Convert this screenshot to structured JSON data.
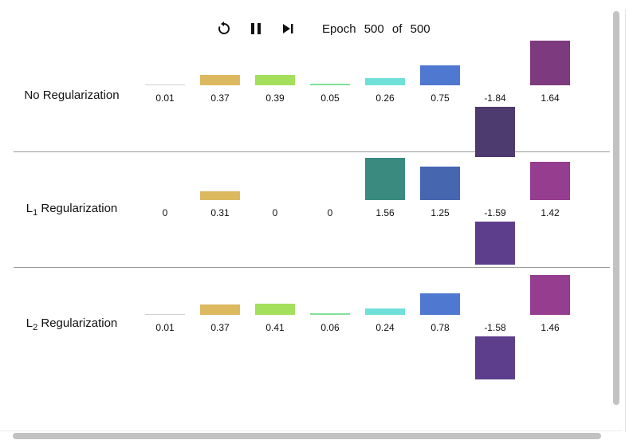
{
  "controls": {
    "restart_icon": "restart-icon",
    "pause_icon": "pause-icon",
    "step_icon": "step-forward-icon",
    "epoch_label": "Epoch",
    "epoch_current": "500",
    "epoch_of": "of",
    "epoch_total": "500"
  },
  "rows": [
    {
      "label_main": "No Regularization",
      "label_sub": "",
      "label_suffix": "",
      "values": [
        "0.01",
        "0.37",
        "0.39",
        "0.05",
        "0.26",
        "0.75",
        "-1.84",
        "1.64"
      ]
    },
    {
      "label_main": "L",
      "label_sub": "1",
      "label_suffix": " Regularization",
      "values": [
        "0",
        "0.31",
        "0",
        "0",
        "1.56",
        "1.25",
        "-1.59",
        "1.42"
      ]
    },
    {
      "label_main": "L",
      "label_sub": "2",
      "label_suffix": " Regularization",
      "values": [
        "0.01",
        "0.37",
        "0.41",
        "0.06",
        "0.24",
        "0.78",
        "-1.58",
        "1.46"
      ]
    }
  ],
  "colors": {
    "row0": [
      "#d0d0d0",
      "#dcb95f",
      "#a4e05c",
      "#82e09a",
      "#6fe0d8",
      "#4f78d0",
      "#4d3a6e",
      "#7e3a7e"
    ],
    "row1": [
      "#d0d0d0",
      "#dcb95f",
      "#a4e05c",
      "#82e09a",
      "#3a8a80",
      "#4666b0",
      "#5c3e8c",
      "#953d8f"
    ],
    "row2": [
      "#d0d0d0",
      "#dcb95f",
      "#a4e05c",
      "#82e09a",
      "#6fe0d8",
      "#4f78d0",
      "#5c3e8c",
      "#953d8f"
    ]
  }
}
